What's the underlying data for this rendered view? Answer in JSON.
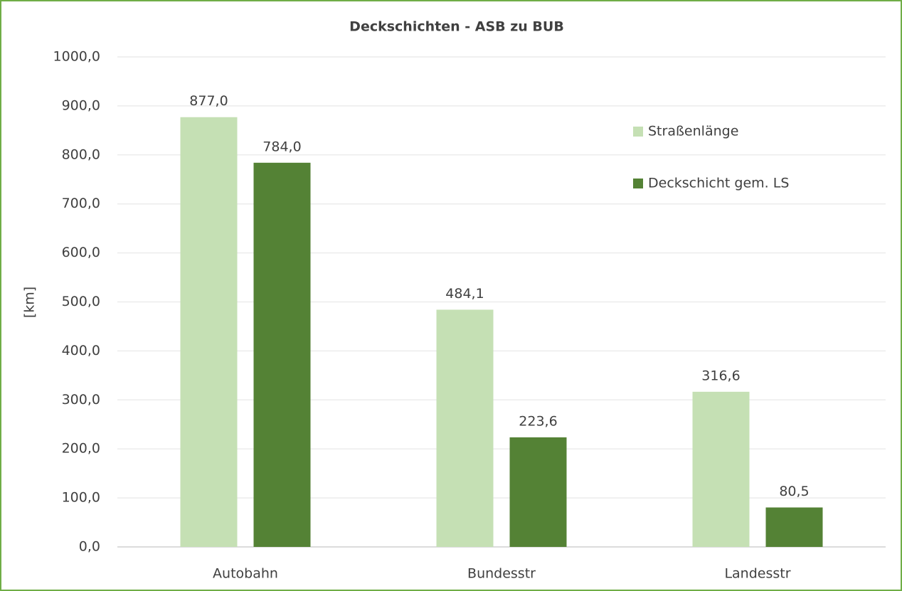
{
  "chart_data": {
    "type": "bar",
    "title": "Deckschichten - ASB zu BUB",
    "y_label": "[km]",
    "categories": [
      "Autobahn",
      "Bundesstr",
      "Landesstr"
    ],
    "series": [
      {
        "name": "Straßenlänge",
        "color": "#c5e0b4",
        "values": [
          877.0,
          484.1,
          316.6
        ],
        "value_labels": [
          "877,0",
          "484,1",
          "316,6"
        ]
      },
      {
        "name": "Deckschicht gem. LS",
        "color": "#548235",
        "values": [
          784.0,
          223.6,
          80.5
        ],
        "value_labels": [
          "784,0",
          "223,6",
          "80,5"
        ]
      }
    ],
    "ylim": [
      0,
      1000
    ],
    "yticks": [
      {
        "value": 0,
        "label": "0,0"
      },
      {
        "value": 100,
        "label": "100,0"
      },
      {
        "value": 200,
        "label": "200,0"
      },
      {
        "value": 300,
        "label": "300,0"
      },
      {
        "value": 400,
        "label": "400,0"
      },
      {
        "value": 500,
        "label": "500,0"
      },
      {
        "value": 600,
        "label": "600,0"
      },
      {
        "value": 700,
        "label": "700,0"
      },
      {
        "value": 800,
        "label": "800,0"
      },
      {
        "value": 900,
        "label": "900,0"
      },
      {
        "value": 1000,
        "label": "1000,0"
      }
    ],
    "grid": true,
    "legend": "upper right"
  }
}
